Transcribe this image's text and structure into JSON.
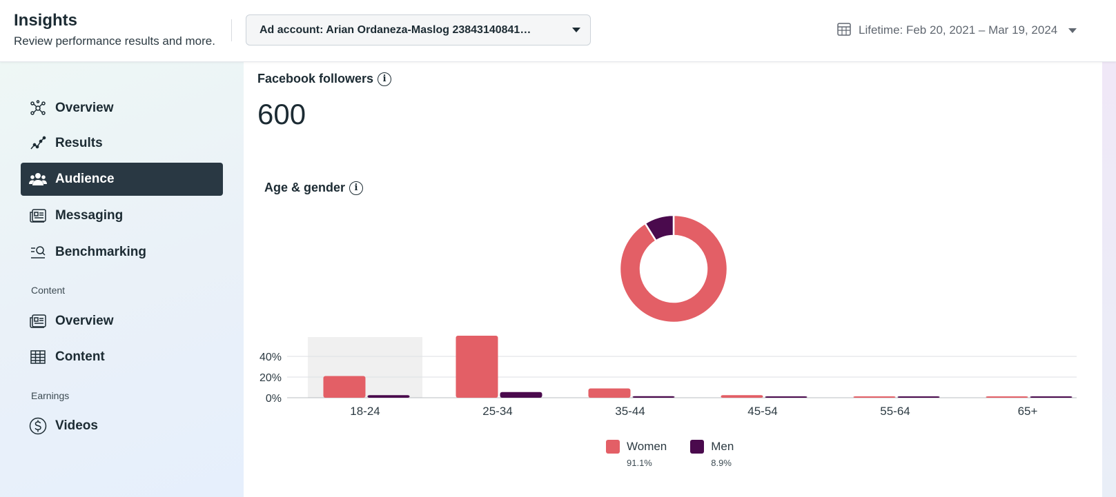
{
  "header": {
    "title": "Insights",
    "subtitle": "Review performance results and more.",
    "account_select": "Ad account: Arian Ordaneza-Maslog 23843140841…",
    "date_range": "Lifetime: Feb 20, 2021 – Mar 19, 2024"
  },
  "sidebar": {
    "items": [
      {
        "label": "Overview",
        "icon": "overview-network-icon"
      },
      {
        "label": "Results",
        "icon": "results-line-icon"
      },
      {
        "label": "Audience",
        "icon": "audience-people-icon",
        "active": true
      },
      {
        "label": "Messaging",
        "icon": "messaging-icon"
      },
      {
        "label": "Benchmarking",
        "icon": "benchmarking-search-icon"
      }
    ],
    "content_section": "Content",
    "content_items": [
      {
        "label": "Overview",
        "icon": "content-overview-icon"
      },
      {
        "label": "Content",
        "icon": "table-grid-icon"
      }
    ],
    "earnings_section": "Earnings",
    "earnings_items": [
      {
        "label": "Videos",
        "icon": "dollar-circle-icon"
      }
    ]
  },
  "main": {
    "followers_title": "Facebook followers",
    "followers_value": "600",
    "age_gender_title": "Age & gender"
  },
  "colors": {
    "women": "#e35f66",
    "men": "#4a0a4d",
    "active_nav": "#293843"
  },
  "chart_data": [
    {
      "type": "pie",
      "donut": true,
      "labels": [
        "Women",
        "Men"
      ],
      "values": [
        91.1,
        8.9
      ]
    },
    {
      "type": "bar",
      "categories": [
        "18-24",
        "25-34",
        "35-44",
        "45-54",
        "55-64",
        "65+"
      ],
      "series": [
        {
          "name": "Women",
          "values": [
            21,
            60,
            9,
            2.5,
            0.8,
            0.8
          ]
        },
        {
          "name": "Men",
          "values": [
            2.5,
            5.5,
            1.5,
            1,
            0.8,
            0.8
          ]
        }
      ],
      "yticks": [
        "0%",
        "20%",
        "40%"
      ],
      "ylim": [
        0,
        60
      ],
      "highlighted_category": "18-24",
      "grid": true,
      "legend": [
        {
          "name": "Women",
          "pct": "91.1%"
        },
        {
          "name": "Men",
          "pct": "8.9%"
        }
      ]
    }
  ]
}
